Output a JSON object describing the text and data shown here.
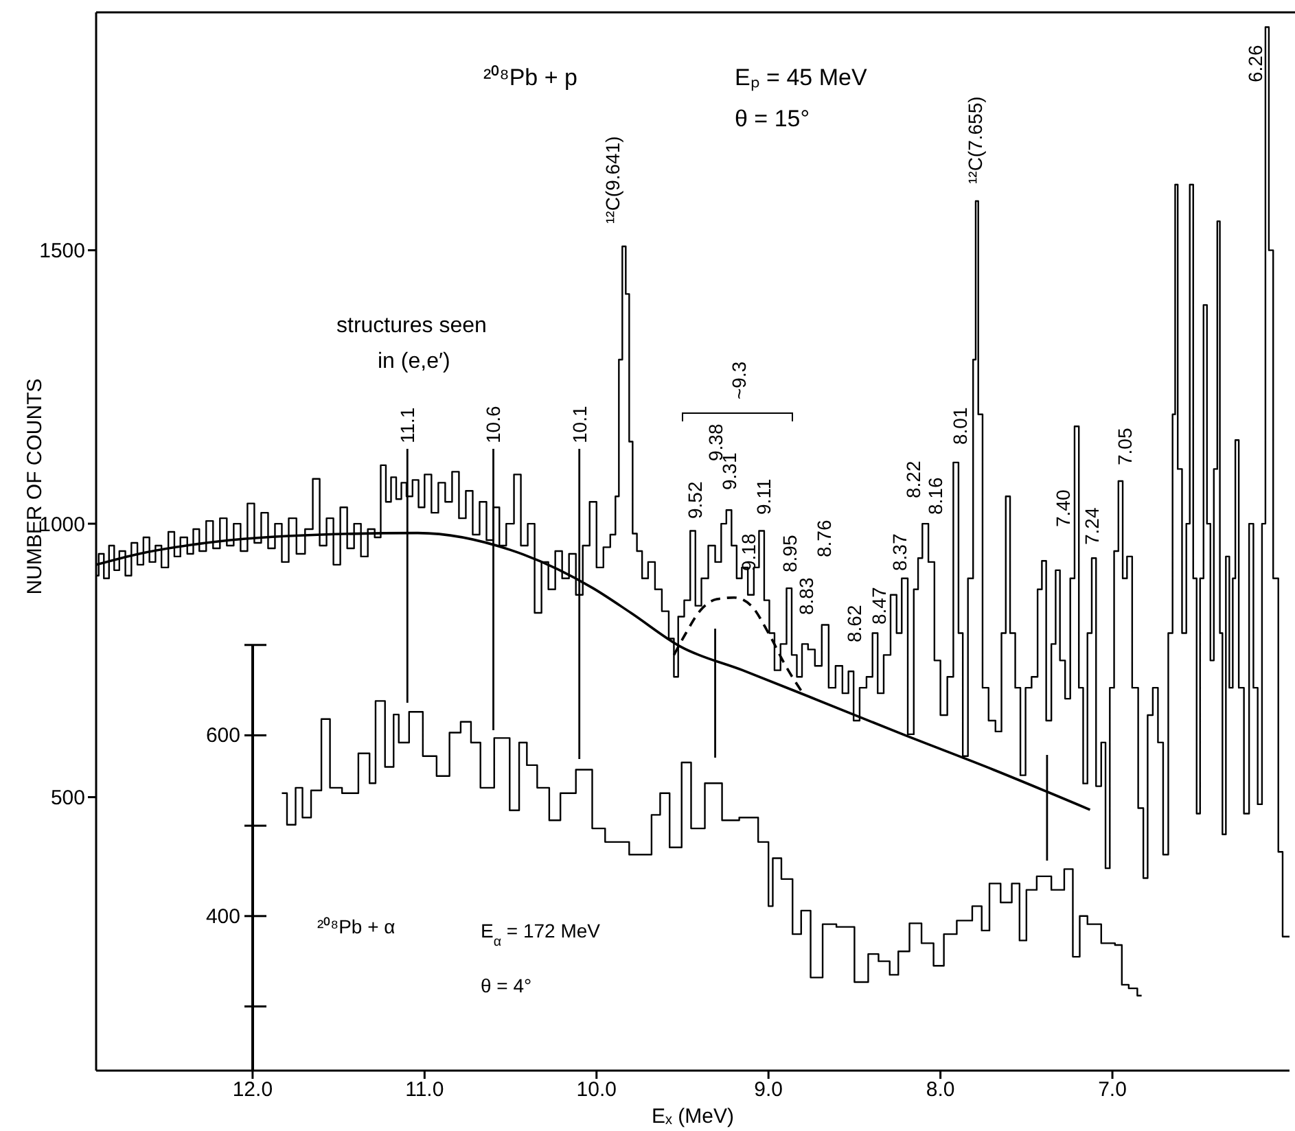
{
  "chart_data": {
    "type": "step",
    "xlabel": "Eₓ (MeV)",
    "ylabel": "NUMBER OF COUNTS",
    "xlim": [
      12.91,
      5.97
    ],
    "ylim": [
      0,
      1935
    ],
    "xticks": [
      {
        "value": 12,
        "label": "12.0"
      },
      {
        "value": 11,
        "label": "11.0"
      },
      {
        "value": 10,
        "label": "10.0"
      },
      {
        "value": 9,
        "label": "9.0"
      },
      {
        "value": 8,
        "label": "8.0"
      },
      {
        "value": 7,
        "label": "7.0"
      }
    ],
    "yticks": [
      500,
      1000,
      1500
    ],
    "y2lim": [
      229,
      1400
    ],
    "y2ticks": [
      600,
      400
    ],
    "series": [
      {
        "color": "#000000",
        "x": [
          12.91,
          12.88,
          12.85,
          12.82,
          12.79,
          12.76,
          12.72,
          12.69,
          12.65,
          12.62,
          12.58,
          12.55,
          12.51,
          12.47,
          12.44,
          12.4,
          12.36,
          12.33,
          12.29,
          12.25,
          12.21,
          12.17,
          12.13,
          12.09,
          12.05,
          12.01,
          11.97,
          11.93,
          11.89,
          11.85,
          11.81,
          11.77,
          11.72,
          11.67,
          11.63,
          11.59,
          11.55,
          11.51,
          11.47,
          11.43,
          11.39,
          11.35,
          11.31,
          11.27,
          11.24,
          11.21,
          11.18,
          11.15,
          11.12,
          11.09,
          11.05,
          11.02,
          10.98,
          10.94,
          10.9,
          10.86,
          10.82,
          10.78,
          10.74,
          10.7,
          10.66,
          10.62,
          10.58,
          10.55,
          10.5,
          10.46,
          10.42,
          10.38,
          10.34,
          10.3,
          10.26,
          10.22,
          10.18,
          10.14,
          10.1,
          10.06,
          10.02,
          9.98,
          9.94,
          9.9,
          9.88,
          9.86,
          9.84,
          9.82,
          9.8,
          9.78,
          9.75,
          9.72,
          9.68,
          9.64,
          9.6,
          9.56,
          9.54,
          9.51,
          9.47,
          9.44,
          9.41,
          9.37,
          9.33,
          9.29,
          9.26,
          9.23,
          9.2,
          9.17,
          9.14,
          9.1,
          9.07,
          9.04,
          9.01,
          8.98,
          8.95,
          8.91,
          8.88,
          8.85,
          8.82,
          8.79,
          8.75,
          8.71,
          8.67,
          8.63,
          8.59,
          8.55,
          8.52,
          8.49,
          8.45,
          8.41,
          8.38,
          8.35,
          8.31,
          8.27,
          8.24,
          8.21,
          8.17,
          8.14,
          8.12,
          8.09,
          8.05,
          8.02,
          7.98,
          7.94,
          7.91,
          7.88,
          7.86,
          7.82,
          7.8,
          7.79,
          7.77,
          7.74,
          7.7,
          7.66,
          7.63,
          7.61,
          7.58,
          7.55,
          7.52,
          7.49,
          7.45,
          7.42,
          7.4,
          7.37,
          7.34,
          7.32,
          7.29,
          7.26,
          7.23,
          7.21,
          7.18,
          7.16,
          7.13,
          7.11,
          7.08,
          7.05,
          7.03,
          7.0,
          6.98,
          6.95,
          6.93,
          6.9,
          6.87,
          6.83,
          6.81,
          6.78,
          6.75,
          6.72,
          6.69,
          6.66,
          6.64,
          6.63,
          6.61,
          6.58,
          6.56,
          6.54,
          6.52,
          6.5,
          6.48,
          6.46,
          6.44,
          6.42,
          6.4,
          6.38,
          6.37,
          6.35,
          6.33,
          6.31,
          6.29,
          6.28,
          6.25,
          6.22,
          6.19,
          6.17,
          6.14,
          6.12,
          6.1,
          6.08,
          6.05,
          6.02,
          6.0,
          5.97
        ],
        "values": [
          905,
          945,
          900,
          960,
          915,
          950,
          905,
          965,
          925,
          975,
          930,
          960,
          920,
          985,
          940,
          975,
          945,
          990,
          950,
          1005,
          955,
          1010,
          960,
          1000,
          950,
          1037,
          965,
          1020,
          955,
          1000,
          930,
          1010,
          945,
          990,
          1082,
          960,
          1010,
          925,
          1030,
          955,
          1000,
          940,
          990,
          975,
          1107,
          1040,
          1085,
          1045,
          1075,
          1050,
          1080,
          1030,
          1090,
          1020,
          1075,
          1040,
          1095,
          1010,
          1060,
          980,
          1040,
          970,
          1030,
          960,
          1000,
          1090,
          960,
          1000,
          837,
          930,
          880,
          950,
          900,
          945,
          870,
          960,
          1040,
          920,
          957,
          980,
          1050,
          1300,
          1507,
          1420,
          1150,
          982,
          950,
          900,
          930,
          880,
          840,
          790,
          720,
          830,
          860,
          987,
          850,
          900,
          960,
          930,
          1000,
          1025,
          960,
          900,
          920,
          870,
          920,
          987,
          860,
          800,
          732,
          780,
          882,
          760,
          720,
          780,
          770,
          740,
          815,
          700,
          740,
          690,
          730,
          640,
          700,
          720,
          800,
          690,
          760,
          870,
          800,
          900,
          615,
          880,
          937,
          1000,
          930,
          750,
          650,
          720,
          1112,
          800,
          575,
          900,
          1300,
          1590,
          1200,
          700,
          640,
          620,
          800,
          1050,
          800,
          700,
          540,
          700,
          720,
          880,
          932,
          640,
          780,
          915,
          750,
          680,
          900,
          1178,
          700,
          525,
          800,
          937,
          520,
          600,
          370,
          700,
          950,
          1078,
          900,
          940,
          700,
          480,
          352,
          650,
          700,
          600,
          395,
          800,
          1200,
          1620,
          1100,
          800,
          1000,
          1620,
          900,
          470,
          900,
          1400,
          1000,
          750,
          1100,
          1553,
          800,
          432,
          940,
          700,
          900,
          1153,
          700,
          470,
          1000,
          700,
          487,
          1000,
          1908,
          1500,
          900,
          400,
          245,
          245
        ]
      },
      {
        "type": "line",
        "color": "#000000",
        "x": [
          12.91,
          12.66,
          12.27,
          11.6,
          11.04,
          10.5,
          10.02,
          9.8,
          9.51,
          9.15,
          8.75,
          8.22,
          7.69,
          7.13
        ],
        "values": [
          925,
          945,
          965,
          980,
          983,
          952,
          882,
          837,
          775,
          732,
          682,
          615,
          550,
          477
        ]
      },
      {
        "type": "line",
        "color": "#000000",
        "line_style": "dashed",
        "x": [
          9.55,
          9.48,
          9.4,
          9.3,
          9.2,
          9.1,
          9.0,
          8.9,
          8.8
        ],
        "values": [
          760,
          800,
          840,
          862,
          865,
          850,
          800,
          740,
          690
        ]
      },
      {
        "color": "#000000",
        "axis": "y2",
        "x": [
          11.83,
          11.77,
          11.73,
          11.69,
          11.63,
          11.57,
          11.53,
          11.43,
          11.34,
          11.3,
          11.27,
          11.19,
          11.17,
          11.13,
          11.05,
          10.97,
          10.89,
          10.82,
          10.76,
          10.7,
          10.65,
          10.54,
          10.47,
          10.43,
          10.38,
          10.31,
          10.24,
          10.18,
          10.06,
          9.99,
          9.91,
          9.71,
          9.65,
          9.61,
          9.54,
          9.47,
          9.43,
          9.31,
          9.23,
          9.11,
          9.01,
          8.99,
          8.96,
          8.89,
          8.83,
          8.79,
          8.72,
          8.65,
          8.56,
          8.44,
          8.4,
          8.32,
          8.27,
          8.22,
          8.14,
          8.08,
          8.0,
          7.96,
          7.85,
          7.78,
          7.74,
          7.69,
          7.61,
          7.56,
          7.52,
          7.48,
          7.4,
          7.31,
          7.25,
          7.21,
          7.17,
          7.12,
          7.01,
          6.96,
          6.93,
          6.88,
          6.83
        ],
        "values": [
          536,
          501,
          542,
          509,
          539,
          618,
          542,
          536,
          580,
          547,
          638,
          565,
          623,
          592,
          626,
          577,
          555,
          603,
          615,
          592,
          542,
          597,
          517,
          592,
          567,
          542,
          506,
          536,
          562,
          497,
          482,
          468,
          512,
          536,
          476,
          570,
          497,
          547,
          506,
          509,
          482,
          411,
          464,
          441,
          380,
          406,
          332,
          391,
          388,
          327,
          358,
          350,
          335,
          361,
          392,
          370,
          345,
          380,
          395,
          411,
          384,
          436,
          415,
          436,
          373,
          429,
          444,
          429,
          452,
          355,
          400,
          391,
          370,
          368,
          324,
          320,
          312
        ]
      }
    ],
    "ref_lines": [
      {
        "axis": "x",
        "value": 11.1,
        "label": "11.1"
      },
      {
        "axis": "x",
        "value": 10.6,
        "label": "10.6"
      },
      {
        "axis": "x",
        "value": 10.1,
        "label": "10.1"
      },
      {
        "axis": "x",
        "value": 9.31,
        "label": null
      },
      {
        "axis": "x",
        "value": 7.38,
        "label": null
      }
    ],
    "annotations": [
      "²⁰⁸Pb + p",
      "Eₚ = 45 MeV",
      "θ = 15°",
      "structures seen",
      "in (e,e′)",
      "¹²C(9.641)",
      "~9.3",
      "9.52",
      "9.38",
      "9.31",
      "9.18",
      "9.11",
      "8.95",
      "8.83",
      "8.76",
      "8.62",
      "8.47",
      "8.37",
      "8.22",
      "8.16",
      "8.01",
      "¹²C(7.655)",
      "7.40",
      "7.24",
      "7.05",
      "6.26",
      "²⁰⁸Pb + α",
      "E$_{α}$ = 172 MeV",
      "θ = 4°"
    ]
  }
}
